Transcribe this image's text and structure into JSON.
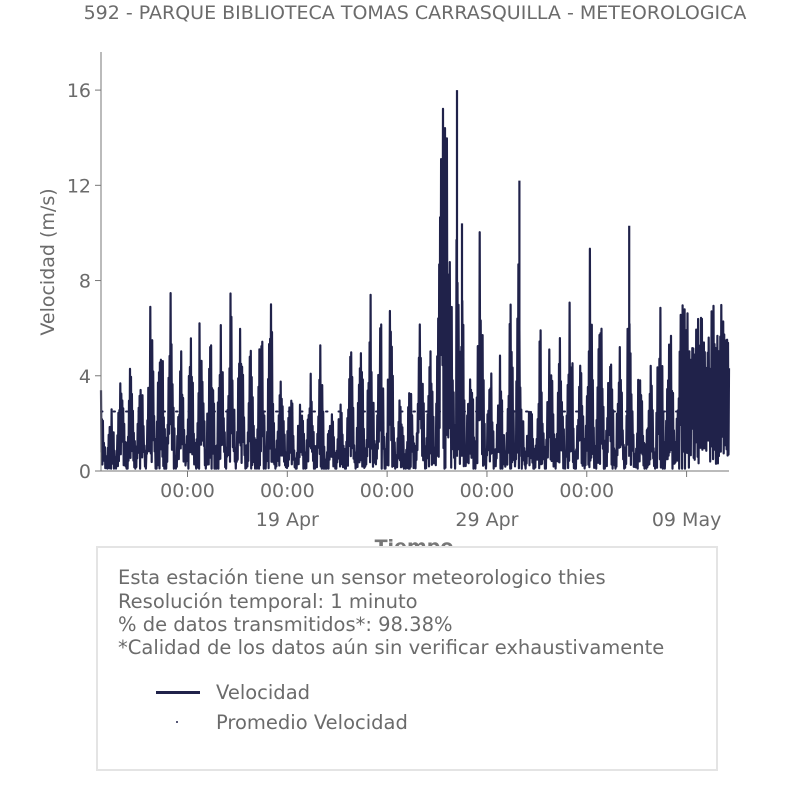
{
  "chart_data": {
    "type": "line",
    "title": "592 - PARQUE BIBLIOTECA TOMAS CARRASQUILLA - METEOROLOGICA",
    "xlabel": "Tiempo",
    "ylabel": "Velocidad (m/s)",
    "ylim": [
      0,
      17.6
    ],
    "yticks": [
      0,
      4,
      8,
      12,
      16
    ],
    "xlim": [
      "2025-04-09 16:00",
      "2025-05-11 03:00"
    ],
    "xticks": [
      {
        "date": "2025-04-14 00:00",
        "major": "00:00",
        "minor": ""
      },
      {
        "date": "2025-04-19 00:00",
        "major": "00:00",
        "minor": "19 Apr"
      },
      {
        "date": "2025-04-24 00:00",
        "major": "00:00",
        "minor": ""
      },
      {
        "date": "2025-04-29 00:00",
        "major": "00:00",
        "minor": "29 Apr"
      },
      {
        "date": "2025-05-04 00:00",
        "major": "00:00",
        "minor": ""
      },
      {
        "date": "2025-05-09 00:00",
        "major": "",
        "minor": "09 May"
      }
    ],
    "grid": false,
    "series": [
      {
        "name": "Velocidad",
        "color": "#20224a",
        "x_start": "2025-04-09 16:00",
        "x_step_hours": 6,
        "values": [
          4.4,
          0.3,
          3.0,
          0.4,
          5.9,
          0.5,
          5.3,
          0.3,
          5.2,
          0.6,
          8.2,
          1.0,
          8.1,
          0.4,
          9.1,
          0.3,
          5.6,
          0.4,
          6.3,
          0.2,
          8.4,
          0.2,
          8.1,
          0.2,
          7.0,
          0.3,
          8.2,
          0.4,
          8.2,
          0.2,
          6.4,
          0.4,
          8.1,
          0.3,
          9.2,
          0.2,
          6.3,
          0.3,
          4.6,
          0.2,
          4.2,
          0.2,
          5.1,
          0.3,
          6.0,
          0.2,
          3.6,
          0.4,
          3.3,
          0.3,
          6.3,
          0.2,
          7.9,
          0.5,
          7.8,
          0.4,
          7.2,
          0.2,
          8.3,
          0.2,
          4.0,
          0.3,
          4.6,
          0.3,
          8.1,
          0.4,
          5.6,
          0.6,
          14.7,
          16.0,
          10.4,
          0.5,
          3.3,
          0.2,
          6.2,
          0.3,
          12.2,
          0.3,
          5.4,
          0.3,
          5.1,
          0.4,
          8.0,
          0.3,
          5.4,
          0.3,
          3.6,
          0.4,
          6.6,
          0.2,
          6.4,
          0.5,
          6.0,
          0.3,
          8.5,
          0.2,
          5.2,
          0.4,
          10.3,
          0.3,
          8.3,
          0.3,
          6.3,
          0.5,
          5.6,
          0.2,
          6.6,
          0.3,
          5.9,
          0.2,
          5.3,
          0.4,
          8.3,
          0.5,
          8.2,
          0.5,
          7.0
        ],
        "peaks": [
          {
            "date": "2025-04-27 12:00",
            "value": 16.0
          },
          {
            "date": "2025-04-27 18:00",
            "value": 10.4
          },
          {
            "date": "2025-04-30 15:00",
            "value": 12.2
          },
          {
            "date": "2025-05-06 03:00",
            "value": 10.3
          }
        ]
      },
      {
        "name": "Promedio Velocidad",
        "color": "#20224a",
        "style": "dotted",
        "value": 2.5
      }
    ]
  },
  "info": {
    "lines": [
      "Esta estación tiene un sensor meteorologico thies",
      "Resolución temporal: 1 minuto",
      "% de datos transmitidos*: 98.38%",
      "*Calidad de los datos aún sin verificar exhaustivamente"
    ]
  },
  "legend": {
    "items": [
      {
        "label": "Velocidad",
        "marker": "line"
      },
      {
        "label": "Promedio Velocidad",
        "marker": "dot"
      }
    ]
  }
}
